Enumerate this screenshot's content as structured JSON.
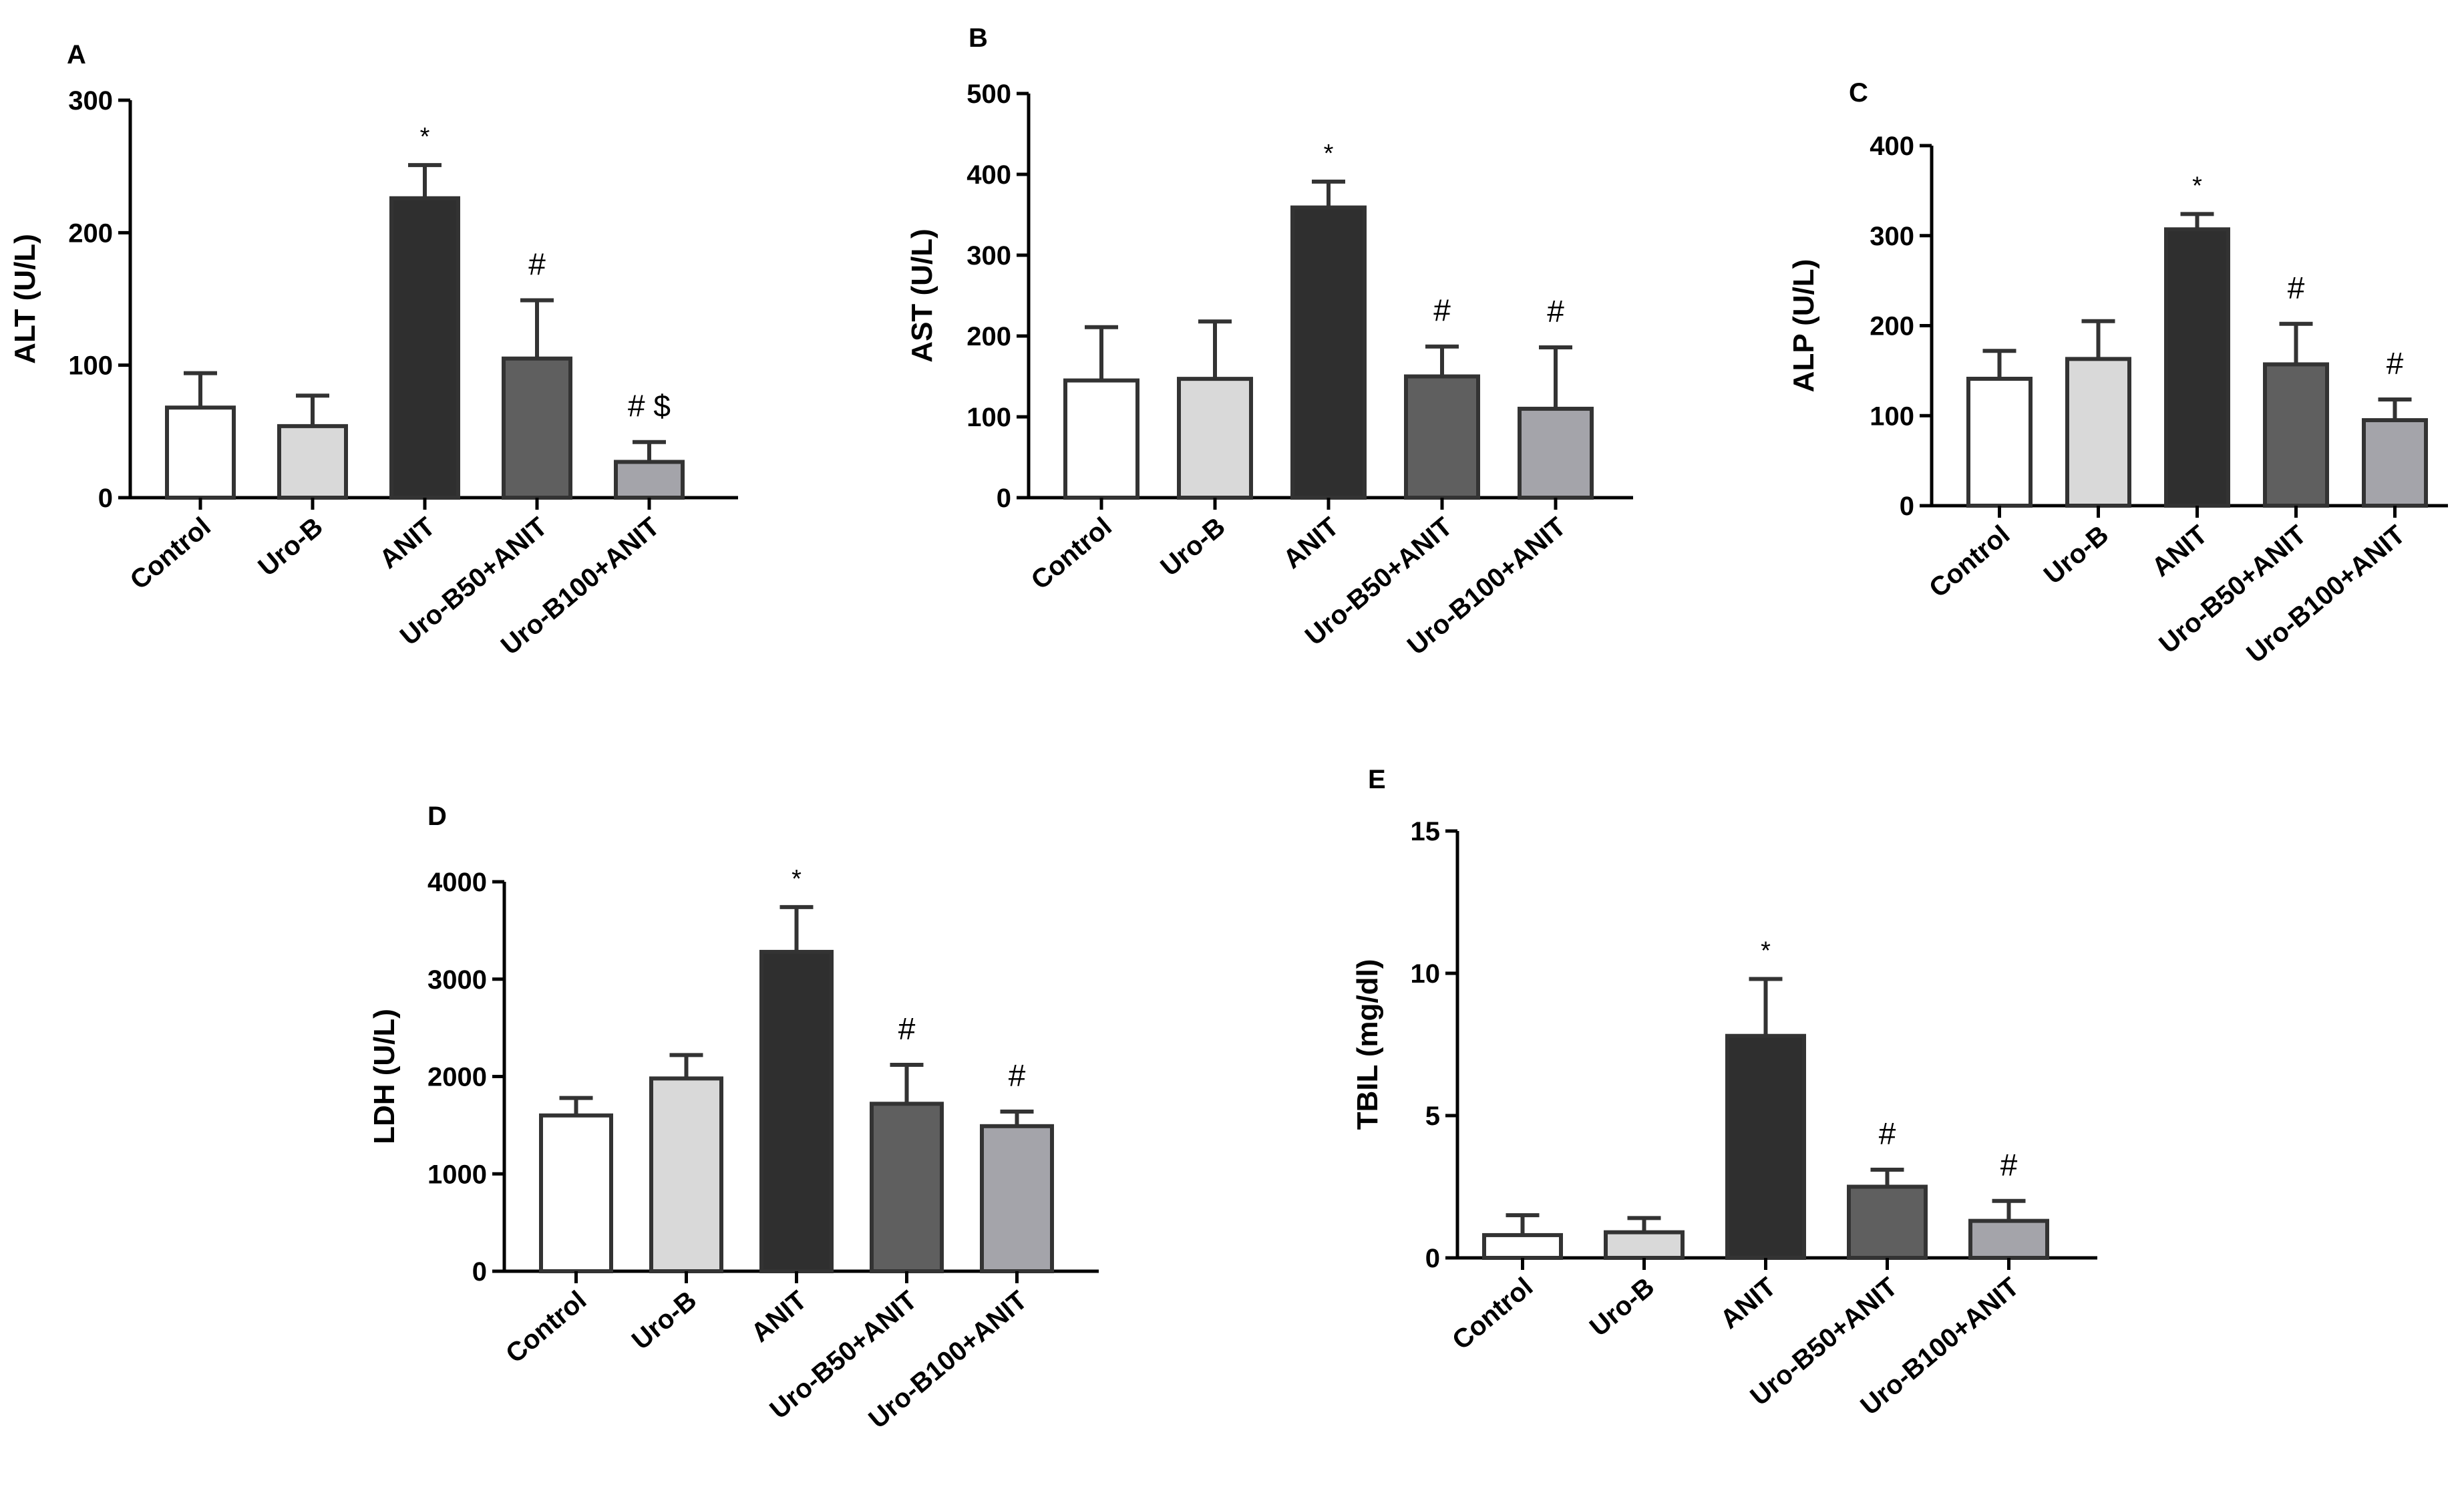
{
  "chart_data": [
    {
      "panel": "A",
      "type": "bar",
      "categories": [
        "Control",
        "Uro-B",
        "ANIT",
        "Uro-B50+ANIT",
        "Uro-B100+ANIT"
      ],
      "values": [
        68,
        54,
        226,
        105,
        27
      ],
      "errors": [
        26,
        23,
        25,
        44,
        15
      ],
      "annotations": [
        "",
        "",
        "*",
        "#",
        "# $"
      ],
      "ylabel": "ALT (U/L)",
      "yticks": [
        0,
        100,
        200,
        300
      ],
      "ylim": [
        0,
        300
      ],
      "colors": [
        "#ffffff",
        "#d9d9d9",
        "#2f2f2f",
        "#5f5f5f",
        "#a4a4aa"
      ]
    },
    {
      "panel": "B",
      "type": "bar",
      "categories": [
        "Control",
        "Uro-B",
        "ANIT",
        "Uro-B50+ANIT",
        "Uro-B100+ANIT"
      ],
      "values": [
        145,
        147,
        359,
        150,
        110
      ],
      "errors": [
        66,
        71,
        32,
        37,
        76
      ],
      "annotations": [
        "",
        "",
        "*",
        "#",
        "#"
      ],
      "ylabel": "AST (U/L)",
      "yticks": [
        0,
        100,
        200,
        300,
        400,
        500
      ],
      "ylim": [
        0,
        500
      ],
      "colors": [
        "#ffffff",
        "#d9d9d9",
        "#2f2f2f",
        "#5f5f5f",
        "#a4a4aa"
      ]
    },
    {
      "panel": "C",
      "type": "bar",
      "categories": [
        "Control",
        "Uro-B",
        "ANIT",
        "Uro-B50+ANIT",
        "Uro-B100+ANIT"
      ],
      "values": [
        141,
        163,
        307,
        157,
        95
      ],
      "errors": [
        31,
        42,
        17,
        45,
        23
      ],
      "annotations": [
        "",
        "",
        "*",
        "#",
        "#"
      ],
      "ylabel": "ALP (U/L)",
      "yticks": [
        0,
        100,
        200,
        300,
        400
      ],
      "ylim": [
        0,
        400
      ],
      "colors": [
        "#ffffff",
        "#d9d9d9",
        "#2f2f2f",
        "#5f5f5f",
        "#a4a4aa"
      ]
    },
    {
      "panel": "D",
      "type": "bar",
      "categories": [
        "Control",
        "Uro-B",
        "ANIT",
        "Uro-B50+ANIT",
        "Uro-B100+ANIT"
      ],
      "values": [
        1600,
        1980,
        3280,
        1720,
        1490
      ],
      "errors": [
        180,
        240,
        460,
        400,
        150
      ],
      "annotations": [
        "",
        "",
        "*",
        "#",
        "#"
      ],
      "ylabel": "LDH (U/L)",
      "yticks": [
        0,
        1000,
        2000,
        3000,
        4000
      ],
      "ylim": [
        0,
        4000
      ],
      "colors": [
        "#ffffff",
        "#d9d9d9",
        "#2f2f2f",
        "#5f5f5f",
        "#a4a4aa"
      ]
    },
    {
      "panel": "E",
      "type": "bar",
      "categories": [
        "Control",
        "Uro-B",
        "ANIT",
        "Uro-B50+ANIT",
        "Uro-B100+ANIT"
      ],
      "values": [
        0.8,
        0.9,
        7.8,
        2.5,
        1.3
      ],
      "errors": [
        0.7,
        0.5,
        2.0,
        0.6,
        0.7
      ],
      "annotations": [
        "",
        "",
        "*",
        "#",
        "#"
      ],
      "ylabel": "TBIL (mg/dl)",
      "yticks": [
        0,
        5,
        10,
        15
      ],
      "ylim": [
        0,
        15
      ],
      "colors": [
        "#ffffff",
        "#d9d9d9",
        "#2f2f2f",
        "#5f5f5f",
        "#a4a4aa"
      ]
    }
  ]
}
